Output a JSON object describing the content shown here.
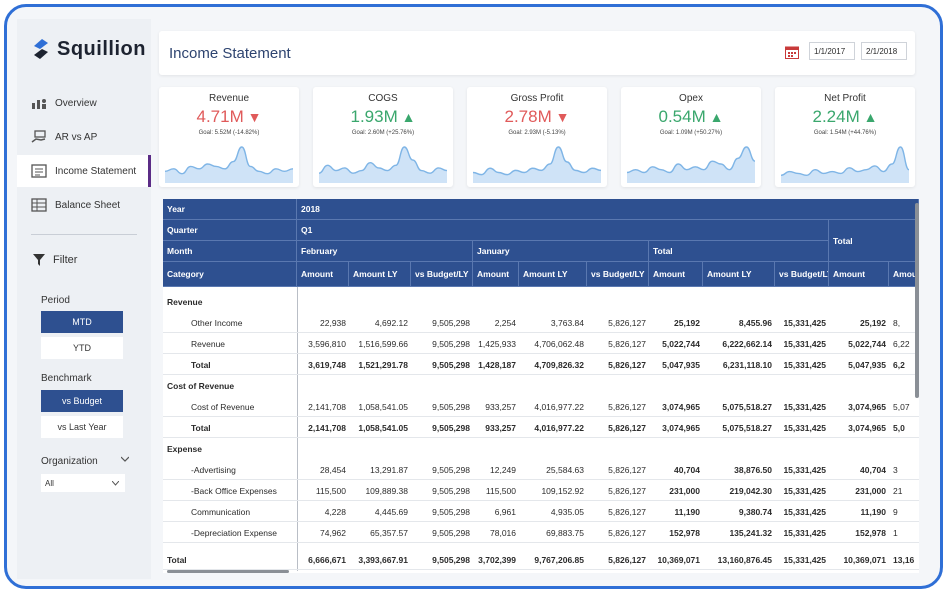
{
  "app": {
    "name": "Squillion",
    "brand_color": "#2e5090",
    "accent_color": "#5b2c86"
  },
  "sidebar": {
    "items": [
      {
        "label": "Overview",
        "icon": "chart-people-icon",
        "active": false
      },
      {
        "label": "AR vs AP",
        "icon": "hand-money-icon",
        "active": false
      },
      {
        "label": "Income Statement",
        "icon": "document-list-icon",
        "active": true
      },
      {
        "label": "Balance Sheet",
        "icon": "spreadsheet-icon",
        "active": false
      }
    ],
    "filter_label": "Filter",
    "period_label": "Period",
    "period_options": [
      "MTD",
      "YTD"
    ],
    "period_selected": "MTD",
    "benchmark_label": "Benchmark",
    "benchmark_options": [
      "vs Budget",
      "vs Last Year"
    ],
    "benchmark_selected": "vs Budget",
    "organization_label": "Organization",
    "organization_value": "All"
  },
  "header": {
    "title": "Income Statement",
    "date_from": "1/1/2017",
    "date_to": "2/1/2018"
  },
  "kpis": [
    {
      "title": "Revenue",
      "value": "4.71M",
      "trend": "down",
      "goal": "Goal: 5.52M (-14.82%)",
      "color": "#e05a5a",
      "spark": [
        4,
        5,
        3,
        6,
        5,
        7,
        6,
        5,
        8,
        14,
        6,
        4,
        3,
        5,
        4,
        5
      ]
    },
    {
      "title": "COGS",
      "value": "1.93M",
      "trend": "up",
      "goal": "Goal: 2.60M (+25.76%)",
      "color": "#3aa76d",
      "spark": [
        3,
        6,
        4,
        5,
        3,
        4,
        7,
        5,
        4,
        6,
        13,
        8,
        4,
        3,
        5,
        4
      ]
    },
    {
      "title": "Gross Profit",
      "value": "2.78M",
      "trend": "down",
      "goal": "Goal: 2.93M (-5.13%)",
      "color": "#e05a5a",
      "spark": [
        4,
        3,
        6,
        4,
        3,
        5,
        4,
        6,
        5,
        8,
        16,
        9,
        5,
        4,
        6,
        5
      ]
    },
    {
      "title": "Opex",
      "value": "0.54M",
      "trend": "up",
      "goal": "Goal: 1.09M (+50.27%)",
      "color": "#3aa76d",
      "spark": [
        3,
        4,
        3,
        5,
        4,
        3,
        6,
        4,
        5,
        4,
        7,
        6,
        4,
        8,
        12,
        7
      ]
    },
    {
      "title": "Net Profit",
      "value": "2.24M",
      "trend": "up",
      "goal": "Goal: 1.54M (+44.76%)",
      "color": "#3aa76d",
      "spark": [
        3,
        5,
        4,
        3,
        6,
        4,
        5,
        4,
        7,
        5,
        6,
        8,
        5,
        9,
        18,
        6
      ]
    }
  ],
  "table": {
    "year_label": "Year",
    "year_value": "2018",
    "quarter_label": "Quarter",
    "quarter_value": "Q1",
    "total_label": "Total",
    "month_label": "Month",
    "months": [
      "February",
      "January",
      "Total"
    ],
    "category_label": "Category",
    "col_headers": [
      "Amount",
      "Amount LY",
      "vs Budget/LY",
      "Amount",
      "Amount LY",
      "vs Budget/LY",
      "Amount",
      "Amount LY",
      "vs Budget/LY",
      "Amount",
      "Amou"
    ],
    "rows": [
      {
        "type": "section",
        "label": "Revenue",
        "values": []
      },
      {
        "type": "detail",
        "label": "Other Income",
        "values": [
          "22,938",
          "4,692.12",
          "9,505,298",
          "2,254",
          "3,763.84",
          "5,826,127",
          "25,192",
          "8,455.96",
          "15,331,425",
          "25,192",
          "8,"
        ]
      },
      {
        "type": "detail",
        "label": "Revenue",
        "values": [
          "3,596,810",
          "1,516,599.66",
          "9,505,298",
          "1,425,933",
          "4,706,062.48",
          "5,826,127",
          "5,022,744",
          "6,222,662.14",
          "15,331,425",
          "5,022,744",
          "6,22"
        ]
      },
      {
        "type": "total",
        "label": "Total",
        "values": [
          "3,619,748",
          "1,521,291.78",
          "9,505,298",
          "1,428,187",
          "4,709,826.32",
          "5,826,127",
          "5,047,935",
          "6,231,118.10",
          "15,331,425",
          "5,047,935",
          "6,2"
        ]
      },
      {
        "type": "section",
        "label": "Cost of Revenue",
        "values": []
      },
      {
        "type": "detail",
        "label": "Cost of Revenue",
        "values": [
          "2,141,708",
          "1,058,541.05",
          "9,505,298",
          "933,257",
          "4,016,977.22",
          "5,826,127",
          "3,074,965",
          "5,075,518.27",
          "15,331,425",
          "3,074,965",
          "5,07"
        ]
      },
      {
        "type": "total",
        "label": "Total",
        "values": [
          "2,141,708",
          "1,058,541.05",
          "9,505,298",
          "933,257",
          "4,016,977.22",
          "5,826,127",
          "3,074,965",
          "5,075,518.27",
          "15,331,425",
          "3,074,965",
          "5,0"
        ]
      },
      {
        "type": "section",
        "label": "Expense",
        "values": []
      },
      {
        "type": "detail",
        "label": "-Advertising",
        "values": [
          "28,454",
          "13,291.87",
          "9,505,298",
          "12,249",
          "25,584.63",
          "5,826,127",
          "40,704",
          "38,876.50",
          "15,331,425",
          "40,704",
          "3"
        ]
      },
      {
        "type": "detail",
        "label": "-Back Office Expenses",
        "values": [
          "115,500",
          "109,889.38",
          "9,505,298",
          "115,500",
          "109,152.92",
          "5,826,127",
          "231,000",
          "219,042.30",
          "15,331,425",
          "231,000",
          "21"
        ]
      },
      {
        "type": "detail",
        "label": "Communication",
        "values": [
          "4,228",
          "4,445.69",
          "9,505,298",
          "6,961",
          "4,935.05",
          "5,826,127",
          "11,190",
          "9,380.74",
          "15,331,425",
          "11,190",
          "9"
        ]
      },
      {
        "type": "detail",
        "label": "-Depreciation Expense",
        "values": [
          "74,962",
          "65,357.57",
          "9,505,298",
          "78,016",
          "69,883.75",
          "5,826,127",
          "152,978",
          "135,241.32",
          "15,331,425",
          "152,978",
          "1"
        ]
      },
      {
        "type": "grand",
        "label": "Total",
        "values": [
          "6,666,671",
          "3,393,667.91",
          "9,505,298",
          "3,702,399",
          "9,767,206.85",
          "5,826,127",
          "10,369,071",
          "13,160,876.45",
          "15,331,425",
          "10,369,071",
          "13,16"
        ]
      }
    ]
  }
}
